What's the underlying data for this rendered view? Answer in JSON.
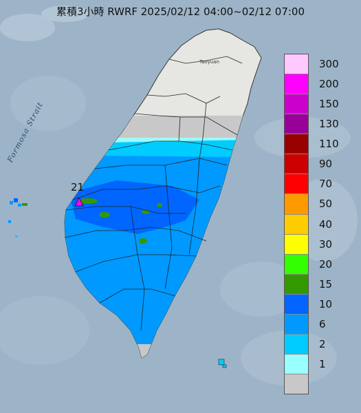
{
  "title": "累積3小時 RWRF 2025/02/12 04:00~02/12 07:00",
  "strait_label": "Formosa Strait",
  "city_label": "Taoyuan",
  "max_value_label": "21",
  "legend": {
    "items": [
      {
        "label": "300",
        "color": "#ffc8ff"
      },
      {
        "label": "200",
        "color": "#ff00ff"
      },
      {
        "label": "150",
        "color": "#cc00cc"
      },
      {
        "label": "130",
        "color": "#990099"
      },
      {
        "label": "110",
        "color": "#990000"
      },
      {
        "label": "90",
        "color": "#cc0000"
      },
      {
        "label": "70",
        "color": "#ff0000"
      },
      {
        "label": "50",
        "color": "#ff9900"
      },
      {
        "label": "40",
        "color": "#ffcc00"
      },
      {
        "label": "30",
        "color": "#ffff00"
      },
      {
        "label": "20",
        "color": "#33ff00"
      },
      {
        "label": "15",
        "color": "#339900"
      },
      {
        "label": "10",
        "color": "#0066ff"
      },
      {
        "label": "6",
        "color": "#0099ff"
      },
      {
        "label": "2",
        "color": "#00ccff"
      },
      {
        "label": "1",
        "color": "#99ffff"
      },
      {
        "label": "",
        "color": "#c8c8c8"
      }
    ]
  }
}
